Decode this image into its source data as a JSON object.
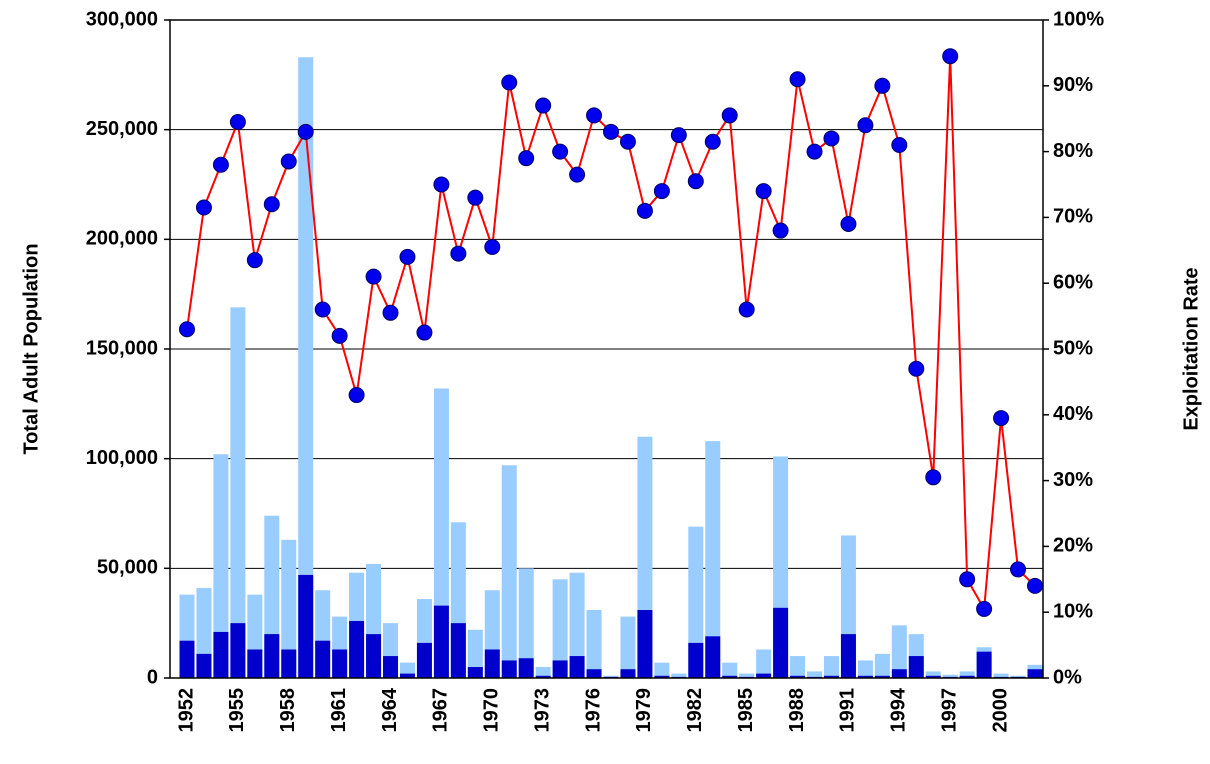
{
  "chart_data": {
    "type": "bar-line",
    "y_label": "Total Adult Population",
    "y2_label": "Exploitation Rate",
    "categories": [
      "1952",
      null,
      null,
      "1955",
      null,
      null,
      "1958",
      null,
      null,
      "1961",
      null,
      null,
      "1964",
      null,
      null,
      "1967",
      null,
      null,
      "1970",
      null,
      null,
      "1973",
      null,
      null,
      "1976",
      null,
      null,
      "1979",
      null,
      null,
      "1982",
      null,
      null,
      "1985",
      null,
      null,
      "1988",
      null,
      null,
      "1991",
      null,
      null,
      "1994",
      null,
      null,
      "1997",
      null,
      null,
      "2000",
      null,
      null
    ],
    "ylim": [
      0,
      300000
    ],
    "yticks": [
      0,
      {
        "value": 50000,
        "label": "50,000"
      },
      {
        "value": 100000,
        "label": "100,000"
      },
      {
        "value": 150000,
        "label": "150,000"
      },
      {
        "value": 200000,
        "label": "200,000"
      },
      {
        "value": 250000,
        "label": "250,000"
      },
      {
        "value": 300000,
        "label": "300,000"
      }
    ],
    "y2lim": [
      0,
      100
    ],
    "y2ticks": [
      {
        "value": 0,
        "label": "0%"
      },
      {
        "value": 10,
        "label": "10%"
      },
      {
        "value": 20,
        "label": "20%"
      },
      {
        "value": 30,
        "label": "30%"
      },
      {
        "value": 40,
        "label": "40%"
      },
      {
        "value": 50,
        "label": "50%"
      },
      {
        "value": 60,
        "label": "60%"
      },
      {
        "value": 70,
        "label": "70%"
      },
      {
        "value": 80,
        "label": "80%"
      },
      {
        "value": 90,
        "label": "90%"
      },
      {
        "value": 100,
        "label": "100%"
      }
    ],
    "grid": true,
    "series": [
      {
        "type": "bar",
        "color": "#99ccff",
        "values": [
          38000,
          41000,
          102000,
          169000,
          38000,
          74000,
          63000,
          283000,
          40000,
          28000,
          48000,
          52000,
          25000,
          7000,
          36000,
          132000,
          71000,
          22000,
          40000,
          97000,
          50000,
          5000,
          45000,
          48000,
          31000,
          1000,
          28000,
          110000,
          7000,
          2000,
          69000,
          108000,
          7000,
          2000,
          13000,
          101000,
          10000,
          3000,
          10000,
          65000,
          8000,
          11000,
          24000,
          20000,
          3000,
          1500,
          3000,
          14000,
          2000,
          1000,
          6000
        ]
      },
      {
        "type": "bar",
        "color": "#0000cc",
        "values": [
          17000,
          11000,
          21000,
          25000,
          13000,
          20000,
          13000,
          47000,
          17000,
          13000,
          26000,
          20000,
          10000,
          2000,
          16000,
          33000,
          25000,
          5000,
          13000,
          8000,
          9000,
          1000,
          8000,
          10000,
          4000,
          500,
          4000,
          31000,
          1000,
          500,
          16000,
          19000,
          1000,
          500,
          2000,
          32000,
          1000,
          500,
          1000,
          20000,
          1000,
          1000,
          4000,
          10000,
          1000,
          500,
          1000,
          12000,
          500,
          500,
          4000
        ]
      },
      {
        "type": "line",
        "axis": "y2",
        "color": "#ff0000",
        "marker_color": "#0000ee",
        "values": [
          53,
          71.5,
          78,
          84.5,
          63.5,
          72,
          78.5,
          83,
          56,
          52,
          43,
          61,
          55.5,
          64,
          52.5,
          75,
          64.5,
          73,
          65.5,
          90.5,
          79,
          87,
          80,
          76.5,
          85.5,
          83,
          81.5,
          71,
          74,
          82.5,
          75.5,
          81.5,
          85.5,
          56,
          74,
          68,
          91,
          80,
          82,
          69,
          84,
          90,
          81,
          47,
          30.5,
          94.5,
          15,
          10.5,
          39.5,
          16.5,
          14
        ]
      }
    ]
  }
}
